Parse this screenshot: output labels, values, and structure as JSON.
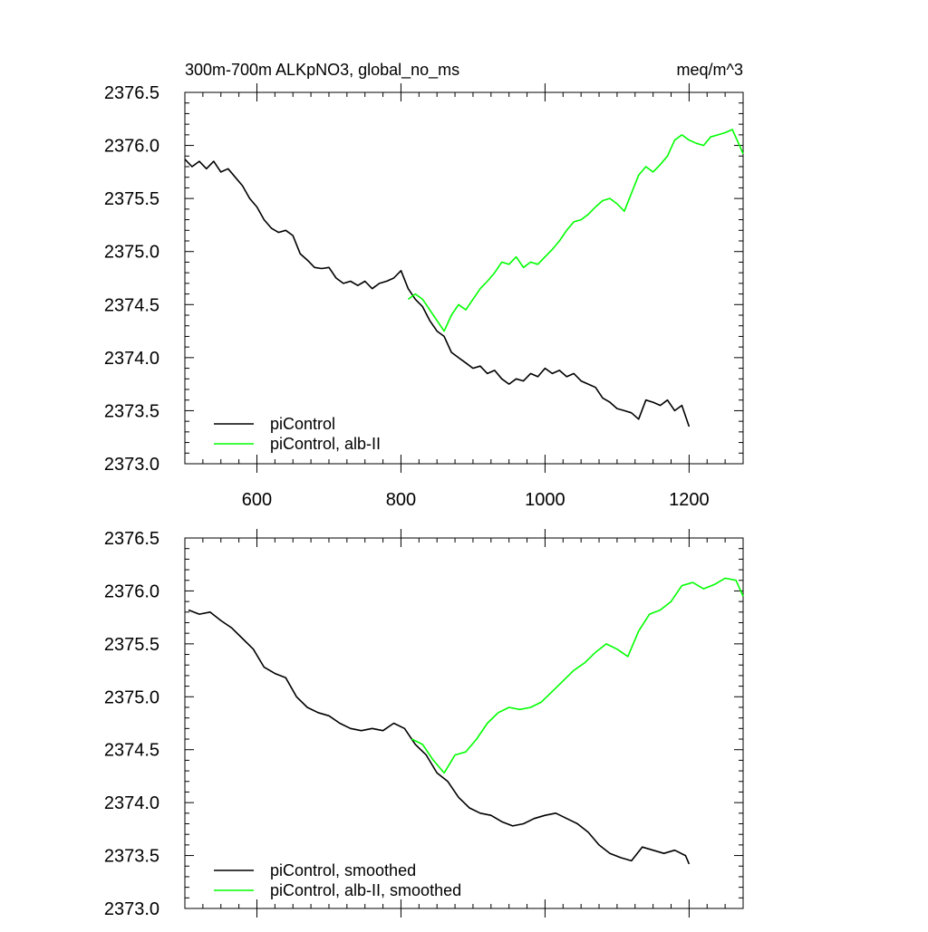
{
  "chart_data": [
    {
      "type": "line",
      "title_left": "300m-700m ALKpNO3, global_no_ms",
      "title_right": "meq/m^3",
      "xlim": [
        500,
        1275
      ],
      "ylim": [
        2373.0,
        2376.5
      ],
      "x_ticks": [
        600,
        800,
        1000,
        1200
      ],
      "x_tick_labels": [
        "600",
        "800",
        "1000",
        "1200"
      ],
      "y_ticks": [
        2373.0,
        2373.5,
        2374.0,
        2374.5,
        2375.0,
        2375.5,
        2376.0,
        2376.5
      ],
      "y_tick_labels": [
        "2373.0",
        "2373.5",
        "2374.0",
        "2374.5",
        "2375.0",
        "2375.5",
        "2376.0",
        "2376.5"
      ],
      "grid": false,
      "legend_position": "bottom-left",
      "series": [
        {
          "name": "piControl",
          "color": "#000000",
          "x": [
            500,
            510,
            520,
            530,
            540,
            550,
            560,
            570,
            580,
            590,
            600,
            610,
            620,
            630,
            640,
            650,
            660,
            670,
            680,
            690,
            700,
            710,
            720,
            730,
            740,
            750,
            760,
            770,
            780,
            790,
            800,
            810,
            820,
            830,
            840,
            850,
            860,
            870,
            880,
            890,
            900,
            910,
            920,
            930,
            940,
            950,
            960,
            970,
            980,
            990,
            1000,
            1010,
            1020,
            1030,
            1040,
            1050,
            1060,
            1070,
            1080,
            1090,
            1100,
            1110,
            1120,
            1130,
            1140,
            1150,
            1160,
            1170,
            1180,
            1190,
            1200
          ],
          "y": [
            2375.87,
            2375.8,
            2375.85,
            2375.78,
            2375.85,
            2375.75,
            2375.78,
            2375.7,
            2375.62,
            2375.5,
            2375.42,
            2375.3,
            2375.22,
            2375.18,
            2375.2,
            2375.15,
            2374.98,
            2374.92,
            2374.85,
            2374.84,
            2374.85,
            2374.75,
            2374.7,
            2374.72,
            2374.68,
            2374.72,
            2374.65,
            2374.7,
            2374.72,
            2374.75,
            2374.82,
            2374.65,
            2374.55,
            2374.48,
            2374.35,
            2374.25,
            2374.2,
            2374.05,
            2374.0,
            2373.95,
            2373.9,
            2373.92,
            2373.85,
            2373.88,
            2373.8,
            2373.75,
            2373.8,
            2373.78,
            2373.85,
            2373.82,
            2373.9,
            2373.85,
            2373.88,
            2373.82,
            2373.85,
            2373.78,
            2373.75,
            2373.72,
            2373.62,
            2373.58,
            2373.52,
            2373.5,
            2373.48,
            2373.42,
            2373.6,
            2373.58,
            2373.55,
            2373.6,
            2373.5,
            2373.55,
            2373.35
          ]
        },
        {
          "name": "piControl, alb-II",
          "color": "#00ff00",
          "x": [
            810,
            820,
            830,
            840,
            850,
            860,
            870,
            880,
            890,
            900,
            910,
            920,
            930,
            940,
            950,
            960,
            970,
            980,
            990,
            1000,
            1010,
            1020,
            1030,
            1040,
            1050,
            1060,
            1070,
            1080,
            1090,
            1100,
            1110,
            1120,
            1130,
            1140,
            1150,
            1160,
            1170,
            1180,
            1190,
            1200,
            1210,
            1220,
            1230,
            1240,
            1250,
            1260,
            1270,
            1275
          ],
          "y": [
            2374.55,
            2374.6,
            2374.55,
            2374.45,
            2374.35,
            2374.25,
            2374.4,
            2374.5,
            2374.45,
            2374.55,
            2374.65,
            2374.72,
            2374.8,
            2374.9,
            2374.88,
            2374.95,
            2374.85,
            2374.9,
            2374.88,
            2374.95,
            2375.02,
            2375.1,
            2375.2,
            2375.28,
            2375.3,
            2375.35,
            2375.42,
            2375.48,
            2375.5,
            2375.45,
            2375.38,
            2375.55,
            2375.72,
            2375.8,
            2375.75,
            2375.82,
            2375.9,
            2376.05,
            2376.1,
            2376.05,
            2376.02,
            2376.0,
            2376.08,
            2376.1,
            2376.12,
            2376.15,
            2376.0,
            2375.92
          ]
        }
      ]
    },
    {
      "type": "line",
      "xlim": [
        500,
        1275
      ],
      "ylim": [
        2373.0,
        2376.5
      ],
      "x_ticks": [
        600,
        800,
        1000,
        1200
      ],
      "y_ticks": [
        2373.0,
        2373.5,
        2374.0,
        2374.5,
        2375.0,
        2375.5,
        2376.0,
        2376.5
      ],
      "y_tick_labels": [
        "2373.0",
        "2373.5",
        "2374.0",
        "2374.5",
        "2375.0",
        "2375.5",
        "2376.0",
        "2376.5"
      ],
      "grid": false,
      "legend_position": "bottom-left",
      "series": [
        {
          "name": "piControl, smoothed",
          "color": "#000000",
          "x": [
            505,
            520,
            535,
            550,
            565,
            580,
            595,
            610,
            625,
            640,
            655,
            670,
            685,
            700,
            715,
            730,
            745,
            760,
            775,
            790,
            805,
            820,
            835,
            850,
            865,
            880,
            895,
            910,
            925,
            940,
            955,
            970,
            985,
            1000,
            1015,
            1030,
            1045,
            1060,
            1075,
            1090,
            1105,
            1120,
            1135,
            1150,
            1165,
            1180,
            1195,
            1200
          ],
          "y": [
            2375.82,
            2375.78,
            2375.8,
            2375.72,
            2375.65,
            2375.55,
            2375.45,
            2375.28,
            2375.22,
            2375.18,
            2375.0,
            2374.9,
            2374.85,
            2374.82,
            2374.75,
            2374.7,
            2374.68,
            2374.7,
            2374.68,
            2374.75,
            2374.7,
            2374.55,
            2374.45,
            2374.28,
            2374.2,
            2374.05,
            2373.95,
            2373.9,
            2373.88,
            2373.82,
            2373.78,
            2373.8,
            2373.85,
            2373.88,
            2373.9,
            2373.85,
            2373.8,
            2373.72,
            2373.6,
            2373.52,
            2373.48,
            2373.45,
            2373.58,
            2373.55,
            2373.52,
            2373.55,
            2373.5,
            2373.42
          ]
        },
        {
          "name": "piControl, alb-II, smoothed",
          "color": "#00ff00",
          "x": [
            815,
            830,
            845,
            860,
            875,
            890,
            905,
            920,
            935,
            950,
            965,
            980,
            995,
            1010,
            1025,
            1040,
            1055,
            1070,
            1085,
            1100,
            1115,
            1130,
            1145,
            1160,
            1175,
            1190,
            1205,
            1220,
            1235,
            1250,
            1265,
            1275
          ],
          "y": [
            2374.6,
            2374.55,
            2374.4,
            2374.28,
            2374.45,
            2374.48,
            2374.6,
            2374.75,
            2374.85,
            2374.9,
            2374.88,
            2374.9,
            2374.95,
            2375.05,
            2375.15,
            2375.25,
            2375.32,
            2375.42,
            2375.5,
            2375.45,
            2375.38,
            2375.62,
            2375.78,
            2375.82,
            2375.9,
            2376.05,
            2376.08,
            2376.02,
            2376.06,
            2376.12,
            2376.1,
            2375.95
          ]
        }
      ]
    }
  ]
}
